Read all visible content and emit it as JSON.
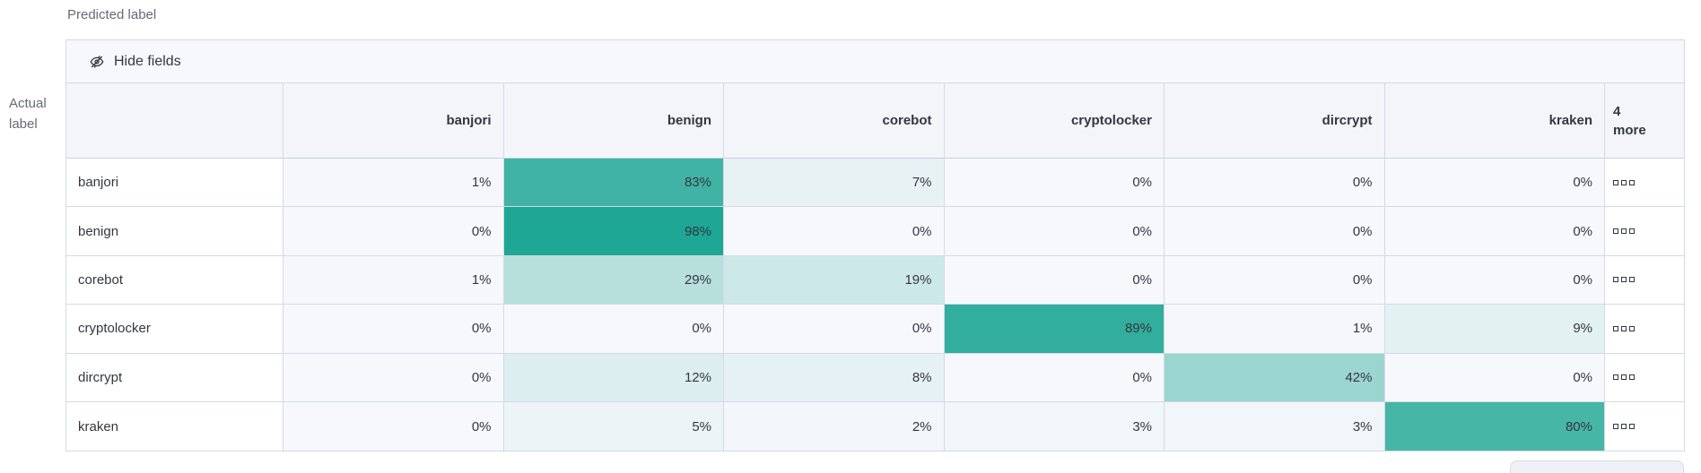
{
  "axes": {
    "predicted_label": "Predicted label",
    "actual_label_line1": "Actual",
    "actual_label_line2": "label"
  },
  "toolbar": {
    "hide_fields_label": "Hide fields",
    "icon": "eye-closed-icon"
  },
  "colors": {
    "heat_base": "#1AA592",
    "zero_cell_bg": "#F7F8FC",
    "header_bg": "#F3F5F9",
    "toolbar_bg": "#F7F8FC",
    "border": "#D3DAE6",
    "text": "#343741",
    "muted_text": "#646A77"
  },
  "chart_data": {
    "type": "heatmap",
    "columns": [
      "banjori",
      "benign",
      "corebot",
      "cryptolocker",
      "dircrypt",
      "kraken"
    ],
    "more_column": {
      "line1": "4",
      "line2": "more",
      "icon": "boxes-horizontal-icon"
    },
    "rows": [
      "banjori",
      "benign",
      "corebot",
      "cryptolocker",
      "dircrypt",
      "kraken"
    ],
    "values_percent": [
      [
        1,
        83,
        7,
        0,
        0,
        0
      ],
      [
        0,
        98,
        0,
        0,
        0,
        0
      ],
      [
        1,
        29,
        19,
        0,
        0,
        0
      ],
      [
        0,
        0,
        0,
        89,
        1,
        9
      ],
      [
        0,
        12,
        8,
        0,
        42,
        0
      ],
      [
        0,
        5,
        2,
        3,
        3,
        80
      ]
    ],
    "value_suffix": "%",
    "x_axis_title": "Predicted label",
    "y_axis_title": "Actual label",
    "legend": "none",
    "value_range": [
      0,
      100
    ]
  }
}
